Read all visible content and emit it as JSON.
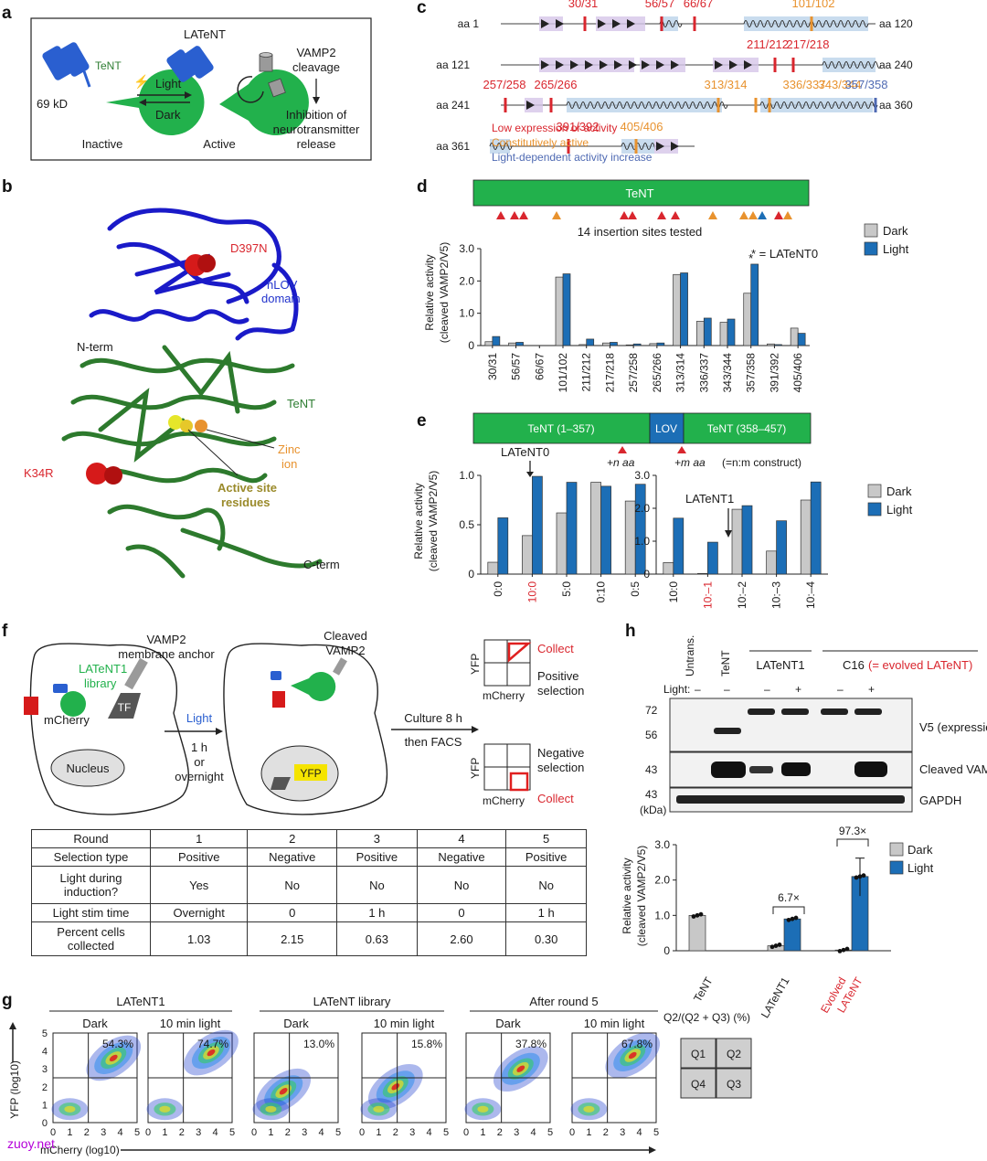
{
  "panel_labels": [
    "a",
    "b",
    "c",
    "d",
    "e",
    "f",
    "g",
    "h"
  ],
  "panel_a": {
    "title": "LATeNT",
    "tent": "TeNT",
    "mass": "69 kD",
    "light": "Light",
    "dark": "Dark",
    "inactive": "Inactive",
    "active": "Active",
    "vamp": "VAMP2",
    "cleavage": "cleavage",
    "inhibition": [
      "Inhibition of",
      "neurotransmitter",
      "release"
    ]
  },
  "panel_b": {
    "d397n": "D397N",
    "hlov": [
      "hLOV",
      "domain"
    ],
    "nterm": "N-term",
    "tent": "TeNT",
    "zinc": [
      "Zinc",
      "ion"
    ],
    "active_site": [
      "Active site",
      "residues"
    ],
    "k34r": "K34R",
    "cterm": "C-term"
  },
  "panel_c": {
    "rows": [
      {
        "left": "aa 1",
        "right": "aa 120"
      },
      {
        "left": "aa 121",
        "right": "aa 240"
      },
      {
        "left": "aa 241",
        "right": "aa 360"
      },
      {
        "left": "aa 361",
        "right": ""
      }
    ],
    "sites": [
      {
        "row": 0,
        "label": "30/31",
        "cls": "red"
      },
      {
        "row": 0,
        "label": "56/57",
        "cls": "red"
      },
      {
        "row": 0,
        "label": "66/67",
        "cls": "red"
      },
      {
        "row": 0,
        "label": "101/102",
        "cls": "org"
      },
      {
        "row": 1,
        "label": "211/212",
        "cls": "red"
      },
      {
        "row": 1,
        "label": "217/218",
        "cls": "red"
      },
      {
        "row": 2,
        "label": "257/258",
        "cls": "red"
      },
      {
        "row": 2,
        "label": "265/266",
        "cls": "red"
      },
      {
        "row": 2,
        "label": "313/314",
        "cls": "org"
      },
      {
        "row": 2,
        "label": "336/337",
        "cls": "org"
      },
      {
        "row": 2,
        "label": "343/344",
        "cls": "org"
      },
      {
        "row": 2,
        "label": "357/358",
        "cls": "blu"
      },
      {
        "row": 3,
        "label": "391/392",
        "cls": "red"
      },
      {
        "row": 3,
        "label": "405/406",
        "cls": "org"
      }
    ],
    "legend": [
      {
        "text": "Low expression or activity",
        "color": "#d9262e"
      },
      {
        "text": "Constitutively active",
        "color": "#e8922e"
      },
      {
        "text": "Light-dependent activity increase",
        "color": "#4f6ab3"
      }
    ]
  },
  "panel_d": {
    "bar_label": "TeNT",
    "sites_tested": "14 insertion sites tested",
    "star_note": "* = LATeNT0",
    "ylabel": [
      "Relative activity",
      "(cleaved VAMP2/V5)"
    ],
    "legend": [
      "Dark",
      "Light"
    ]
  },
  "panel_e": {
    "construct": [
      "TeNT (1–357)",
      "LOV",
      "TeNT (358–457)"
    ],
    "plus_n": "+n aa",
    "plus_m": "+m aa",
    "nm_note": "(=n:m construct)",
    "latent0": "LATeNT0",
    "latent1": "LATeNT1",
    "ylabel": [
      "Relative activity",
      "(cleaved VAMP2/V5)"
    ],
    "legend": [
      "Dark",
      "Light"
    ]
  },
  "panel_f": {
    "vamp_anchor": [
      "VAMP2",
      "membrane anchor"
    ],
    "library": [
      "LATeNT1",
      "library"
    ],
    "tf": "TF",
    "mcherry": "mCherry",
    "nucleus": "Nucleus",
    "light": "Light",
    "time": [
      "1 h",
      "or",
      "overnight"
    ],
    "cleaved": [
      "Cleaved",
      "VAMP2"
    ],
    "yfp": "YFP",
    "culture": [
      "Culture 8 h",
      "then FACS"
    ],
    "collect": "Collect",
    "positive": [
      "Positive",
      "selection"
    ],
    "negative": [
      "Negative",
      "selection"
    ],
    "axis_y": "YFP",
    "axis_x": "mCherry",
    "table": {
      "header": [
        "Round",
        "1",
        "2",
        "3",
        "4",
        "5"
      ],
      "rows": [
        [
          "Selection type",
          "Positive",
          "Negative",
          "Positive",
          "Negative",
          "Positive"
        ],
        [
          "Light during induction?",
          "Yes",
          "No",
          "No",
          "No",
          "No"
        ],
        [
          "Light stim time",
          "Overnight",
          "0",
          "1 h",
          "0",
          "1 h"
        ],
        [
          "Percent cells collected",
          "1.03",
          "2.15",
          "0.63",
          "2.60",
          "0.30"
        ]
      ]
    }
  },
  "panel_g": {
    "groups": [
      "LATeNT1",
      "LATeNT library",
      "After round 5"
    ],
    "conditions": [
      "Dark",
      "10 min light"
    ],
    "percents": [
      "54.3%",
      "74.7%",
      "13.0%",
      "15.8%",
      "37.8%",
      "67.8%"
    ],
    "ylabel": "YFP (log10)",
    "xlabel": "mCherry (log10)",
    "quad_title": "Q2/(Q2 + Q3) (%)",
    "quads": [
      "Q1",
      "Q2",
      "Q4",
      "Q3"
    ]
  },
  "panel_h": {
    "lanes": [
      "Untrans.",
      "TeNT"
    ],
    "latent1": "LATeNT1",
    "c16": "C16",
    "evolved_note": "(= evolved LATeNT)",
    "light_row": [
      "Light:",
      "–",
      "–",
      "–",
      "+",
      "–",
      "+"
    ],
    "mw": [
      "72",
      "56",
      "43",
      "43",
      "(kDa)"
    ],
    "blots": [
      "V5 (expression)",
      "Cleaved VAMP2",
      "GAPDH"
    ],
    "fold1": "6.7×",
    "fold2": "97.3×",
    "ylabel": [
      "Relative activity",
      "(cleaved VAMP2/V5)"
    ],
    "legend": [
      "Dark",
      "Light"
    ],
    "categories": [
      "TeNT",
      "LATeNT1",
      "Evolved",
      "LATeNT"
    ]
  },
  "watermark": "zuoy.net",
  "colors": {
    "dark_bar": "#c8c8c8",
    "light_bar": "#1c6eb6",
    "green": "#22b14c",
    "blue_lov": "#2a5fd0",
    "red": "#d9262e",
    "orange": "#e8922e"
  },
  "chart_data": [
    {
      "type": "bar",
      "categories": [
        "30/31",
        "56/57",
        "66/67",
        "101/102",
        "211/212",
        "217/218",
        "257/258",
        "265/266",
        "313/314",
        "336/337",
        "343/344",
        "357/358",
        "391/392",
        "405/406"
      ],
      "series": [
        {
          "name": "Dark",
          "values": [
            0.12,
            0.08,
            0,
            2.12,
            0.03,
            0.08,
            0.02,
            0.06,
            2.2,
            0.75,
            0.72,
            1.62,
            0.05,
            0.54
          ]
        },
        {
          "name": "Light",
          "values": [
            0.28,
            0.1,
            0,
            2.22,
            0.2,
            0.1,
            0.05,
            0.08,
            2.25,
            0.85,
            0.82,
            2.52,
            0.03,
            0.38
          ]
        }
      ],
      "ylim": [
        0,
        3
      ],
      "yticks": [
        "0",
        "1.0",
        "2.0",
        "3.0"
      ],
      "star_category": "357/358"
    },
    {
      "type": "bar",
      "categories": [
        "0:0",
        "10:0",
        "5:0",
        "0:10",
        "0:5"
      ],
      "highlight": [
        "10:0"
      ],
      "series": [
        {
          "name": "Dark",
          "values": [
            0.12,
            0.39,
            0.62,
            0.93,
            0.74
          ]
        },
        {
          "name": "Light",
          "values": [
            0.57,
            0.99,
            0.93,
            0.89,
            0.91
          ]
        }
      ],
      "ylim": [
        0,
        1.0
      ],
      "yticks": [
        "0",
        "0.5",
        "1.0"
      ]
    },
    {
      "type": "bar",
      "categories": [
        "10:0",
        "10:–1",
        "10:–2",
        "10:–3",
        "10:–4"
      ],
      "highlight": [
        "10:–1"
      ],
      "series": [
        {
          "name": "Dark",
          "values": [
            0.35,
            0.02,
            1.97,
            0.7,
            2.25
          ]
        },
        {
          "name": "Light",
          "values": [
            1.7,
            0.97,
            2.08,
            1.62,
            2.8
          ]
        }
      ],
      "ylim": [
        0,
        3.0
      ],
      "yticks": [
        "0",
        "1.0",
        "2.0",
        "3.0"
      ]
    },
    {
      "type": "bar",
      "categories": [
        "TeNT",
        "LATeNT1",
        "Evolved LATeNT"
      ],
      "series": [
        {
          "name": "Dark",
          "values": [
            1.0,
            0.14,
            0.02
          ]
        },
        {
          "name": "Light",
          "values": [
            0,
            0.9,
            2.1
          ]
        }
      ],
      "ylim": [
        0,
        3.0
      ],
      "yticks": [
        "0",
        "1.0",
        "2.0",
        "3.0"
      ]
    }
  ]
}
